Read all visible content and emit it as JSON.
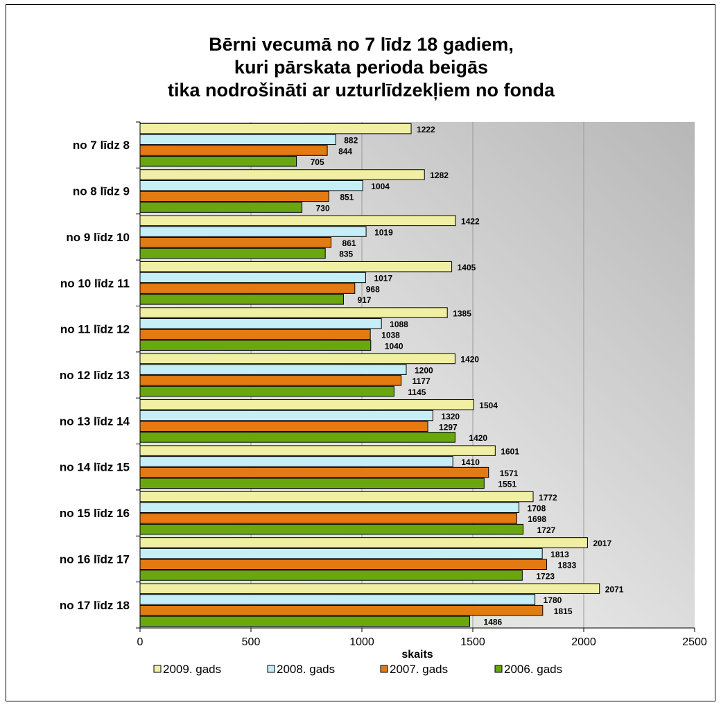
{
  "chart_data": {
    "type": "bar",
    "orientation": "horizontal",
    "title": [
      "Bērni vecumā no 7 līdz 18 gadiem,",
      "kuri pārskata perioda beigās",
      "tika nodrošināti ar uzturlīdzekļiem no fonda"
    ],
    "xlabel": "skaits",
    "ylabel": "",
    "xlim": [
      0,
      2500
    ],
    "xticks": [
      0,
      500,
      1000,
      1500,
      2000,
      2500
    ],
    "grid": true,
    "legend_position": "bottom",
    "categories": [
      "no 7 līdz 8",
      "no 8 līdz 9",
      "no 9 līdz 10",
      "no 10 līdz 11",
      "no 11 līdz 12",
      "no 12 līdz 13",
      "no 13 līdz 14",
      "no 14 līdz 15",
      "no 15 līdz 16",
      "no 16 līdz 17",
      "no 17 līdz 18"
    ],
    "series": [
      {
        "name": "2009. gads",
        "color": "#f0efa4",
        "values": [
          1222,
          1282,
          1422,
          1405,
          1385,
          1420,
          1504,
          1601,
          1772,
          2017,
          2071
        ]
      },
      {
        "name": "2008. gads",
        "color": "#c6eef6",
        "values": [
          882,
          1004,
          1019,
          1017,
          1088,
          1200,
          1320,
          1410,
          1708,
          1813,
          1780
        ]
      },
      {
        "name": "2007. gads",
        "color": "#e47a12",
        "values": [
          844,
          851,
          861,
          968,
          1038,
          1177,
          1297,
          1571,
          1698,
          1833,
          1815
        ]
      },
      {
        "name": "2006. gads",
        "color": "#6aa60e",
        "values": [
          705,
          730,
          835,
          917,
          1040,
          1145,
          1420,
          1551,
          1727,
          1723,
          1486
        ]
      }
    ]
  }
}
